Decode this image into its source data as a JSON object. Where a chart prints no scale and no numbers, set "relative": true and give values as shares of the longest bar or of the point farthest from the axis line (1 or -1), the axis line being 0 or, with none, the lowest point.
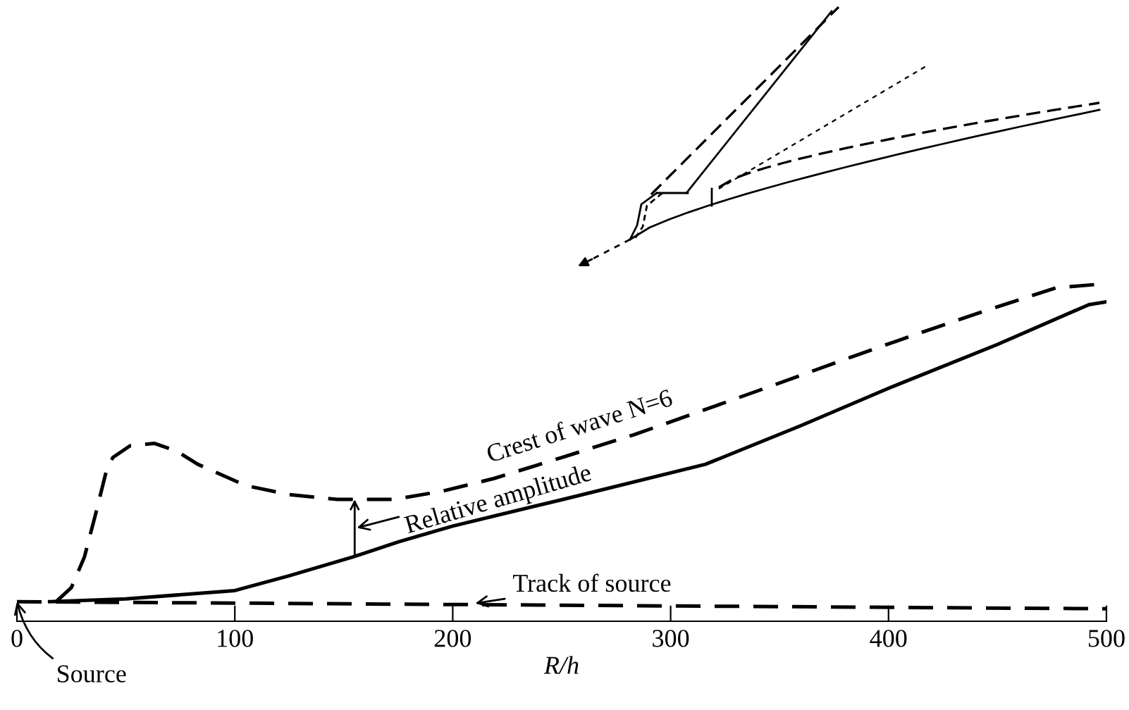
{
  "chart_data": {
    "type": "line",
    "relative": true,
    "xlabel": "R/h",
    "xlim": [
      0,
      500
    ],
    "xticks": [
      0,
      100,
      200,
      300,
      400,
      500
    ],
    "grid": false,
    "legend": false,
    "marker": "none",
    "series": [
      {
        "name": "Crest of wave N=6",
        "color": "#000000",
        "line_style": "dashed",
        "x": [
          18,
          25,
          31,
          36,
          41,
          44,
          52,
          63,
          73,
          83,
          105,
          125,
          147,
          173,
          195,
          219,
          250,
          283,
          315,
          348,
          380,
          413,
          445,
          477,
          500
        ],
        "values": [
          0.058,
          0.1,
          0.191,
          0.315,
          0.444,
          0.485,
          0.52,
          0.527,
          0.505,
          0.465,
          0.402,
          0.375,
          0.361,
          0.361,
          0.385,
          0.423,
          0.485,
          0.552,
          0.625,
          0.701,
          0.776,
          0.851,
          0.921,
          0.988,
          1
        ]
      },
      {
        "color": "#000000",
        "line_style": "solid",
        "x": [
          15,
          50,
          100,
          125,
          154,
          175,
          200,
          250,
          316,
          360,
          400,
          450,
          492,
          500
        ],
        "values": [
          0.058,
          0.066,
          0.091,
          0.135,
          0.19,
          0.235,
          0.282,
          0.36,
          0.465,
          0.58,
          0.69,
          0.82,
          0.938,
          0.946
        ]
      },
      {
        "color": "#000000",
        "line_style": "dashed",
        "x": [
          0,
          500
        ],
        "values": [
          0.058,
          0.037
        ]
      }
    ],
    "annotations": [
      "Relative amplitude",
      {
        "text": "Track of source",
        "x": 205,
        "y": 0.048
      },
      {
        "text": "Source",
        "x": 0,
        "y": 0.058
      }
    ]
  }
}
